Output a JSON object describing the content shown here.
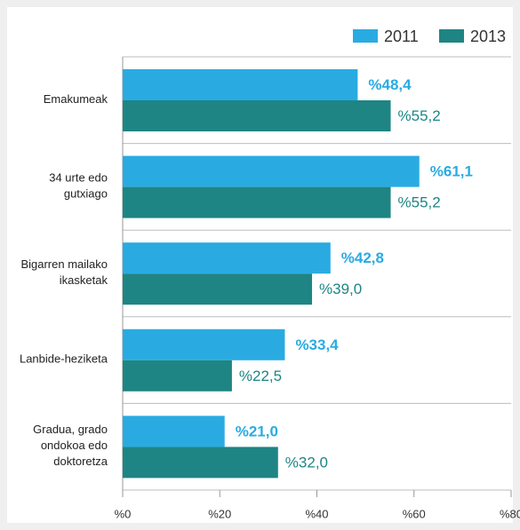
{
  "chart_data": {
    "type": "bar",
    "orientation": "horizontal",
    "categories": [
      "Emakumeak",
      "34 urte edo\ngutxiago",
      "Bigarren mailako\nikasketak",
      "Lanbide-heziketa",
      "Gradua, grado\nondokoa edo\ndoktoretza"
    ],
    "series": [
      {
        "name": "2011",
        "color": "#29abe2",
        "values": [
          48.4,
          61.1,
          42.8,
          33.4,
          21.0
        ],
        "value_labels": [
          "%48,4",
          "%61,1",
          "%42,8",
          "%33,4",
          "%21,0"
        ]
      },
      {
        "name": "2013",
        "color": "#1e8584",
        "values": [
          55.2,
          55.2,
          39.0,
          22.5,
          32.0
        ],
        "value_labels": [
          "%55,2",
          "%55,2",
          "%39,0",
          "%22,5",
          "%32,0"
        ]
      }
    ],
    "xlim": [
      0,
      80
    ],
    "xticks": [
      {
        "value": 0,
        "label": "%0"
      },
      {
        "value": 20,
        "label": "%20"
      },
      {
        "value": 40,
        "label": "%40"
      },
      {
        "value": 60,
        "label": "%60"
      },
      {
        "value": 80,
        "label": "%80"
      }
    ],
    "legend": "top-right"
  }
}
